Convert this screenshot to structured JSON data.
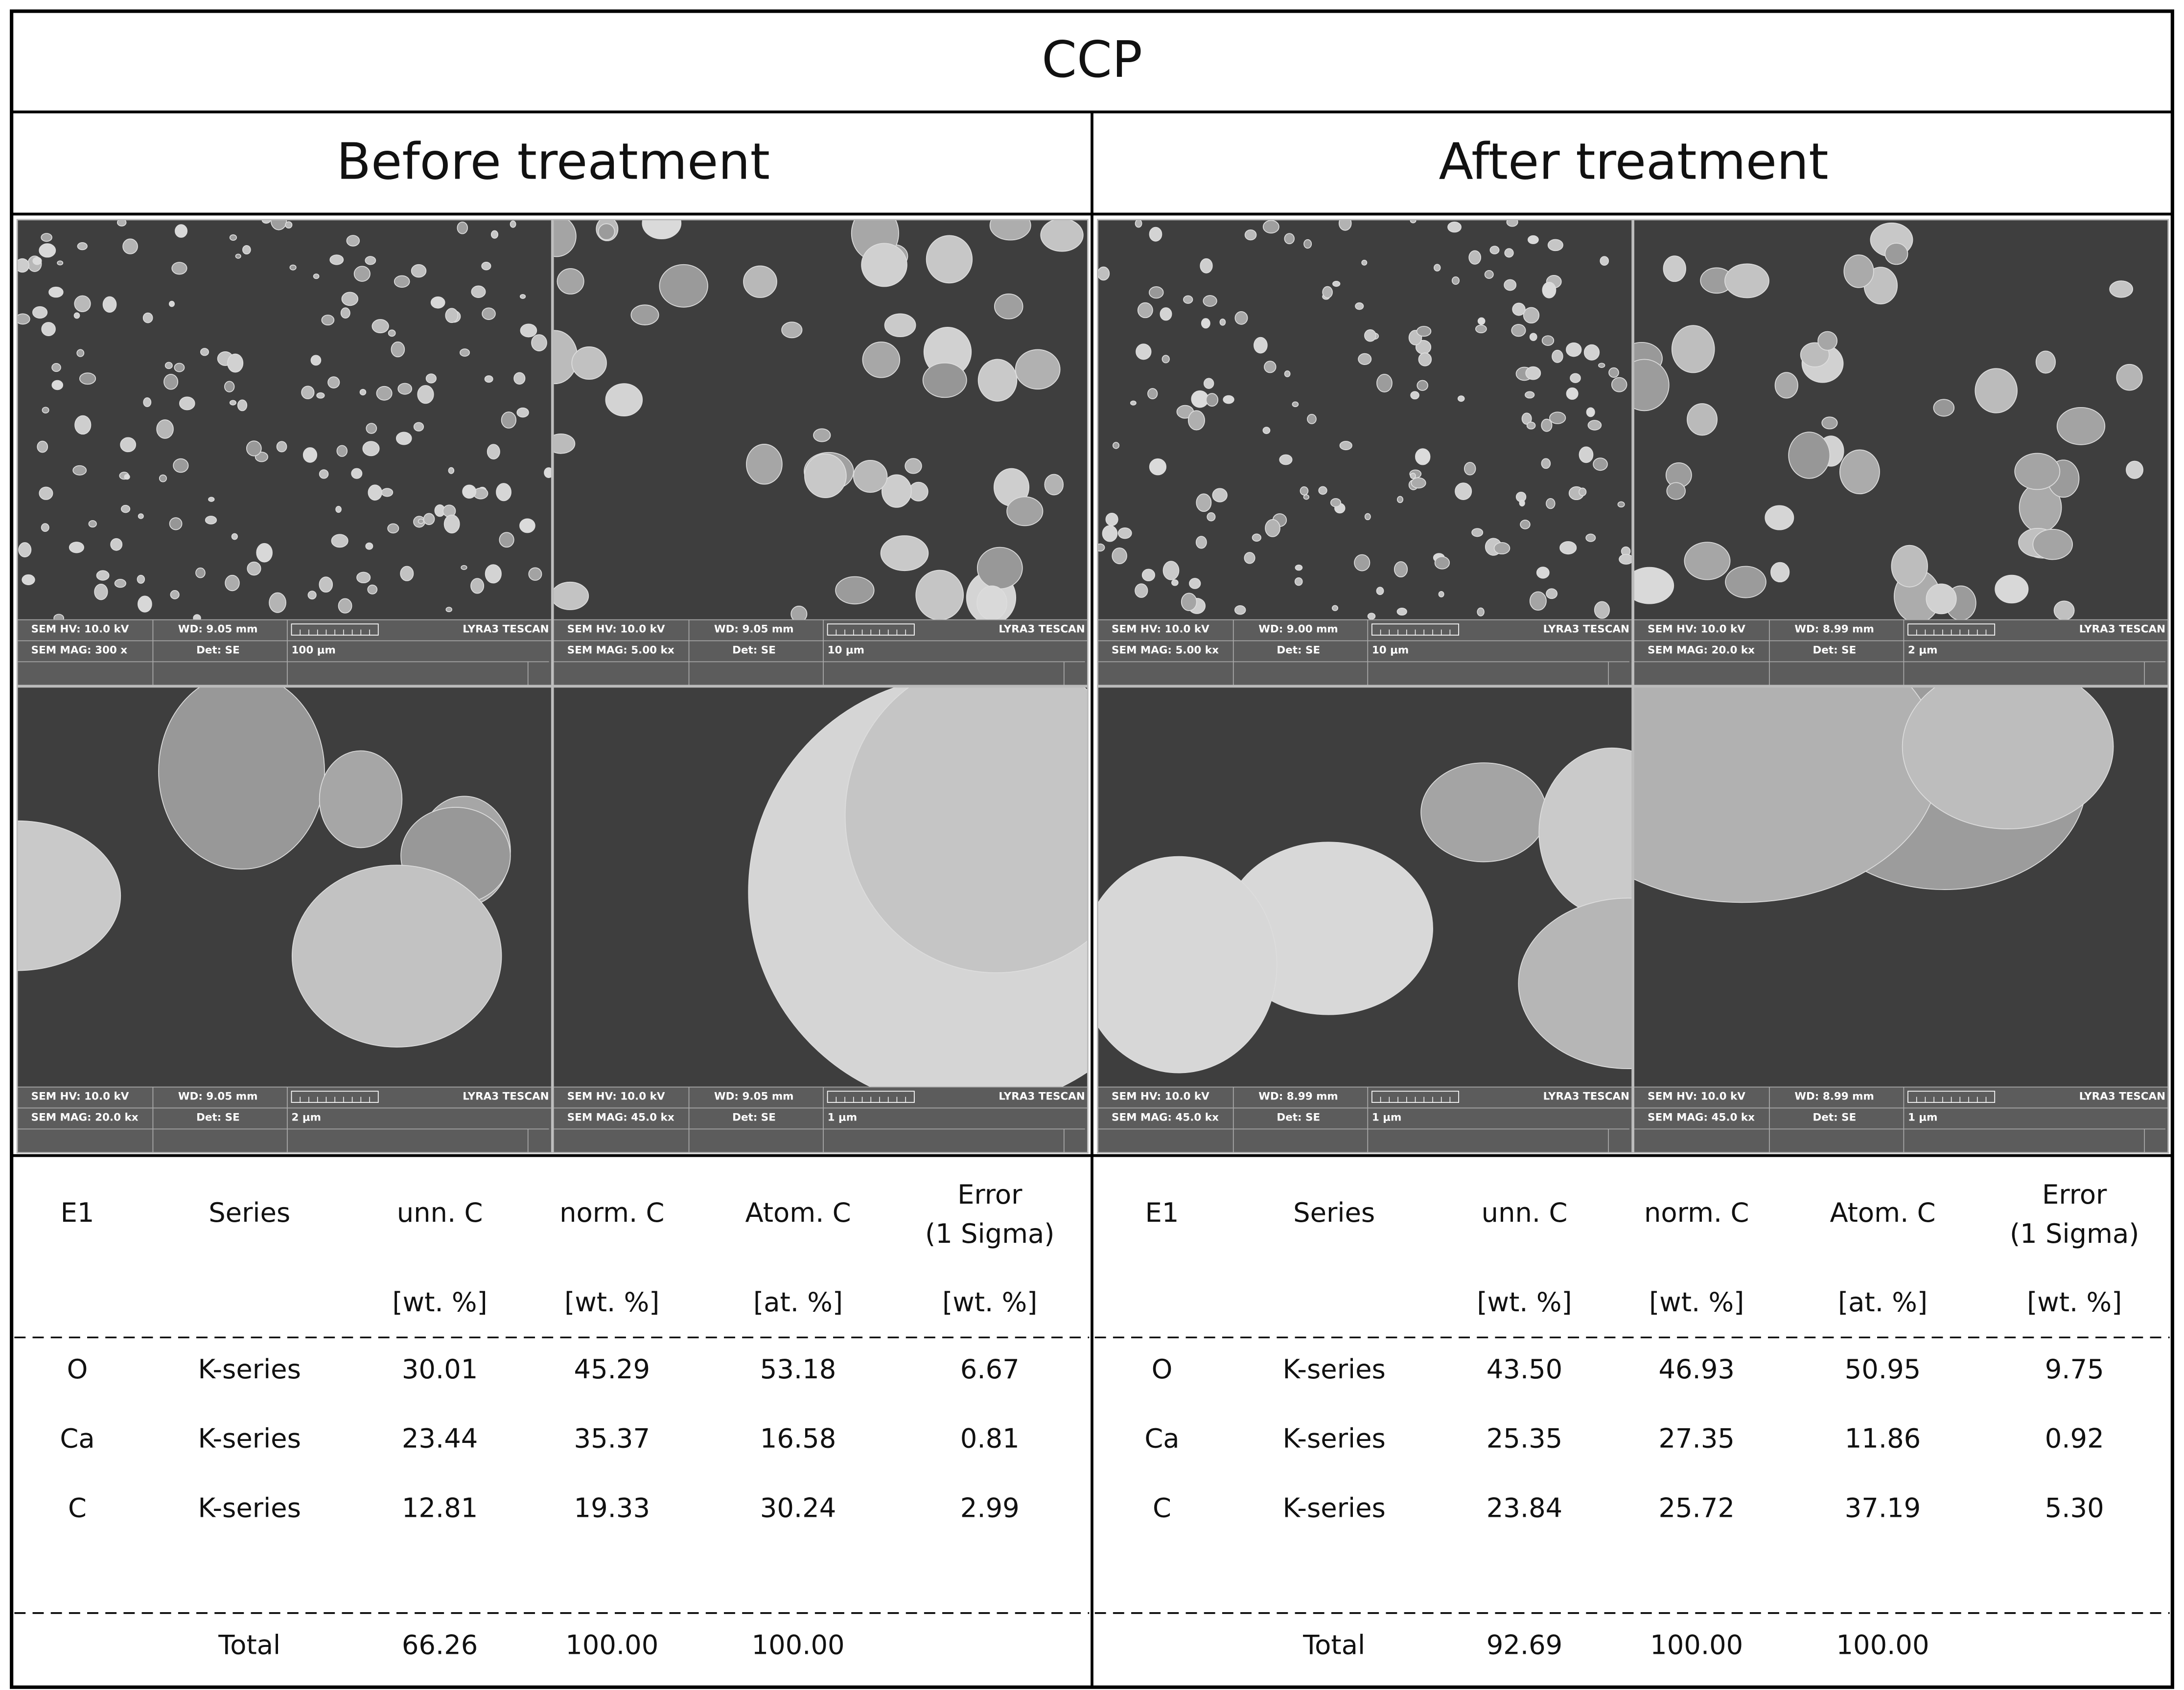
{
  "title": "CCP",
  "panels": [
    {
      "heading": "Before treatment",
      "images": [
        {
          "hv": "SEM HV: 10.0 kV",
          "wd": "WD: 9.05 mm",
          "brand": "LYRA3 TESCAN",
          "mag": "SEM MAG: 300 x",
          "det": "Det: SE",
          "scale": "100 μm"
        },
        {
          "hv": "SEM HV: 10.0 kV",
          "wd": "WD: 9.05 mm",
          "brand": "LYRA3 TESCAN",
          "mag": "SEM MAG: 5.00 kx",
          "det": "Det: SE",
          "scale": "10 μm"
        },
        {
          "hv": "SEM HV: 10.0 kV",
          "wd": "WD: 9.05 mm",
          "brand": "LYRA3 TESCAN",
          "mag": "SEM MAG: 20.0 kx",
          "det": "Det: SE",
          "scale": "2 μm"
        },
        {
          "hv": "SEM HV: 10.0 kV",
          "wd": "WD: 9.05 mm",
          "brand": "LYRA3 TESCAN",
          "mag": "SEM MAG: 45.0 kx",
          "det": "Det: SE",
          "scale": "1 μm"
        }
      ],
      "table": {
        "headers": [
          "E1",
          "Series",
          "unn. C",
          "norm. C",
          "Atom. C",
          [
            "Error",
            "(1 Sigma)"
          ]
        ],
        "units": [
          "[wt. %]",
          "[wt. %]",
          "[at. %]",
          "[wt. %]"
        ],
        "rows": [
          [
            "O",
            "K-series",
            "30.01",
            "45.29",
            "53.18",
            "6.67"
          ],
          [
            "Ca",
            "K-series",
            "23.44",
            "35.37",
            "16.58",
            "0.81"
          ],
          [
            "C",
            "K-series",
            "12.81",
            "19.33",
            "30.24",
            "2.99"
          ]
        ],
        "total": {
          "label": "Total",
          "values": [
            "66.26",
            "100.00",
            "100.00"
          ]
        }
      }
    },
    {
      "heading": "After treatment",
      "images": [
        {
          "hv": "SEM HV: 10.0 kV",
          "wd": "WD: 9.00 mm",
          "brand": "LYRA3 TESCAN",
          "mag": "SEM MAG: 5.00 kx",
          "det": "Det: SE",
          "scale": "10 μm"
        },
        {
          "hv": "SEM HV: 10.0 kV",
          "wd": "WD: 8.99 mm",
          "brand": "LYRA3 TESCAN",
          "mag": "SEM MAG: 20.0 kx",
          "det": "Det: SE",
          "scale": "2 μm"
        },
        {
          "hv": "SEM HV: 10.0 kV",
          "wd": "WD: 8.99 mm",
          "brand": "LYRA3 TESCAN",
          "mag": "SEM MAG: 45.0 kx",
          "det": "Det: SE",
          "scale": "1 μm"
        },
        {
          "hv": "SEM HV: 10.0 kV",
          "wd": "WD: 8.99 mm",
          "brand": "LYRA3 TESCAN",
          "mag": "SEM MAG: 45.0 kx",
          "det": "Det: SE",
          "scale": "1 μm"
        }
      ],
      "table": {
        "headers": [
          "E1",
          "Series",
          "unn. C",
          "norm. C",
          "Atom. C",
          [
            "Error",
            "(1 Sigma)"
          ]
        ],
        "units": [
          "[wt. %]",
          "[wt. %]",
          "[at. %]",
          "[wt. %]"
        ],
        "rows": [
          [
            "O",
            "K-series",
            "43.50",
            "46.93",
            "50.95",
            "9.75"
          ],
          [
            "Ca",
            "K-series",
            "25.35",
            "27.35",
            "11.86",
            "0.92"
          ],
          [
            "C",
            "K-series",
            "23.84",
            "25.72",
            "37.19",
            "5.30"
          ]
        ],
        "total": {
          "label": "Total",
          "values": [
            "92.69",
            "100.00",
            "100.00"
          ]
        }
      }
    }
  ]
}
